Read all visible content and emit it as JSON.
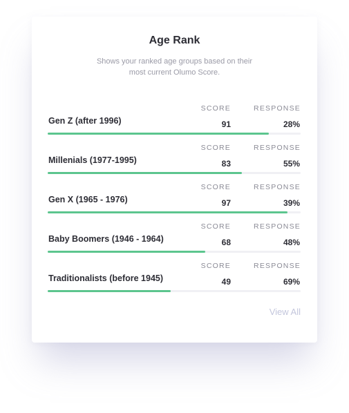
{
  "card": {
    "title": "Age Rank",
    "subtitle": "Shows your ranked age groups based on their most current Olumo Score."
  },
  "columns": {
    "score": "SCORE",
    "response": "RESPONSE"
  },
  "rows": [
    {
      "name": "Gen Z (after 1996)",
      "score": "91",
      "response": "28%",
      "bar_fraction": 0.875
    },
    {
      "name": "Millenials (1977-1995)",
      "score": "83",
      "response": "55%",
      "bar_fraction": 0.768
    },
    {
      "name": "Gen X (1965 - 1976)",
      "score": "97",
      "response": "39%",
      "bar_fraction": 0.948
    },
    {
      "name": "Baby Boomers (1946 - 1964)",
      "score": "68",
      "response": "48%",
      "bar_fraction": 0.623
    },
    {
      "name": "Traditionalists (before 1945)",
      "score": "49",
      "response": "69%",
      "bar_fraction": 0.485
    }
  ],
  "footer": {
    "view_all_label": "View All"
  },
  "colors": {
    "bar_fill": "#5cc58e",
    "bar_track": "#f0f0f4",
    "view_all": "#c3c6dc"
  }
}
